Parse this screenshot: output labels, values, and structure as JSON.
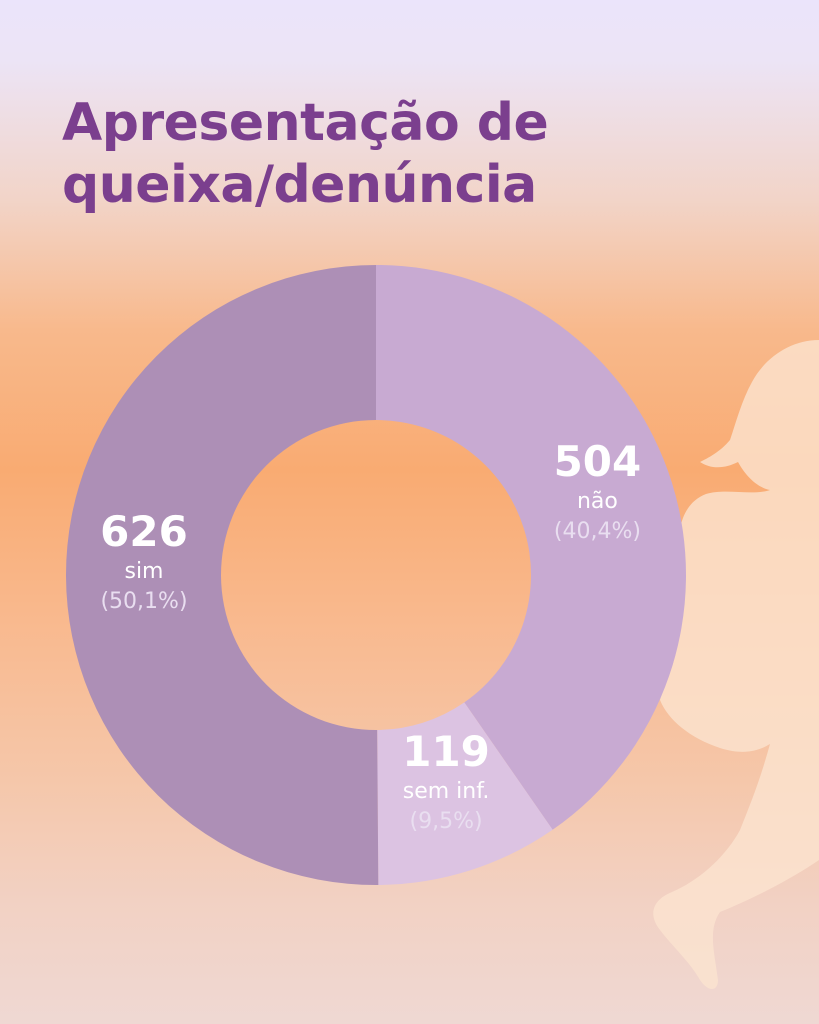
{
  "title_lines": [
    "Apresentação de",
    "queixa/denúncia"
  ],
  "colors": {
    "title": "#7b3f8e",
    "sim": "#ad8fb6",
    "nao": "#c8aad2",
    "sem_inf": "#dcc3e2",
    "label": "#ffffff"
  },
  "chart_data": {
    "type": "pie",
    "donut": true,
    "title": "Apresentação de queixa/denúncia",
    "slices": [
      {
        "label": "não",
        "value": 504,
        "percent_label": "(40,4%)",
        "color": "#c8aad2"
      },
      {
        "label": "sem inf.",
        "value": 119,
        "percent_label": "(9,5%)",
        "color": "#dcc3e2"
      },
      {
        "label": "sim",
        "value": 626,
        "percent_label": "(50,1%)",
        "color": "#ad8fb6"
      }
    ]
  }
}
